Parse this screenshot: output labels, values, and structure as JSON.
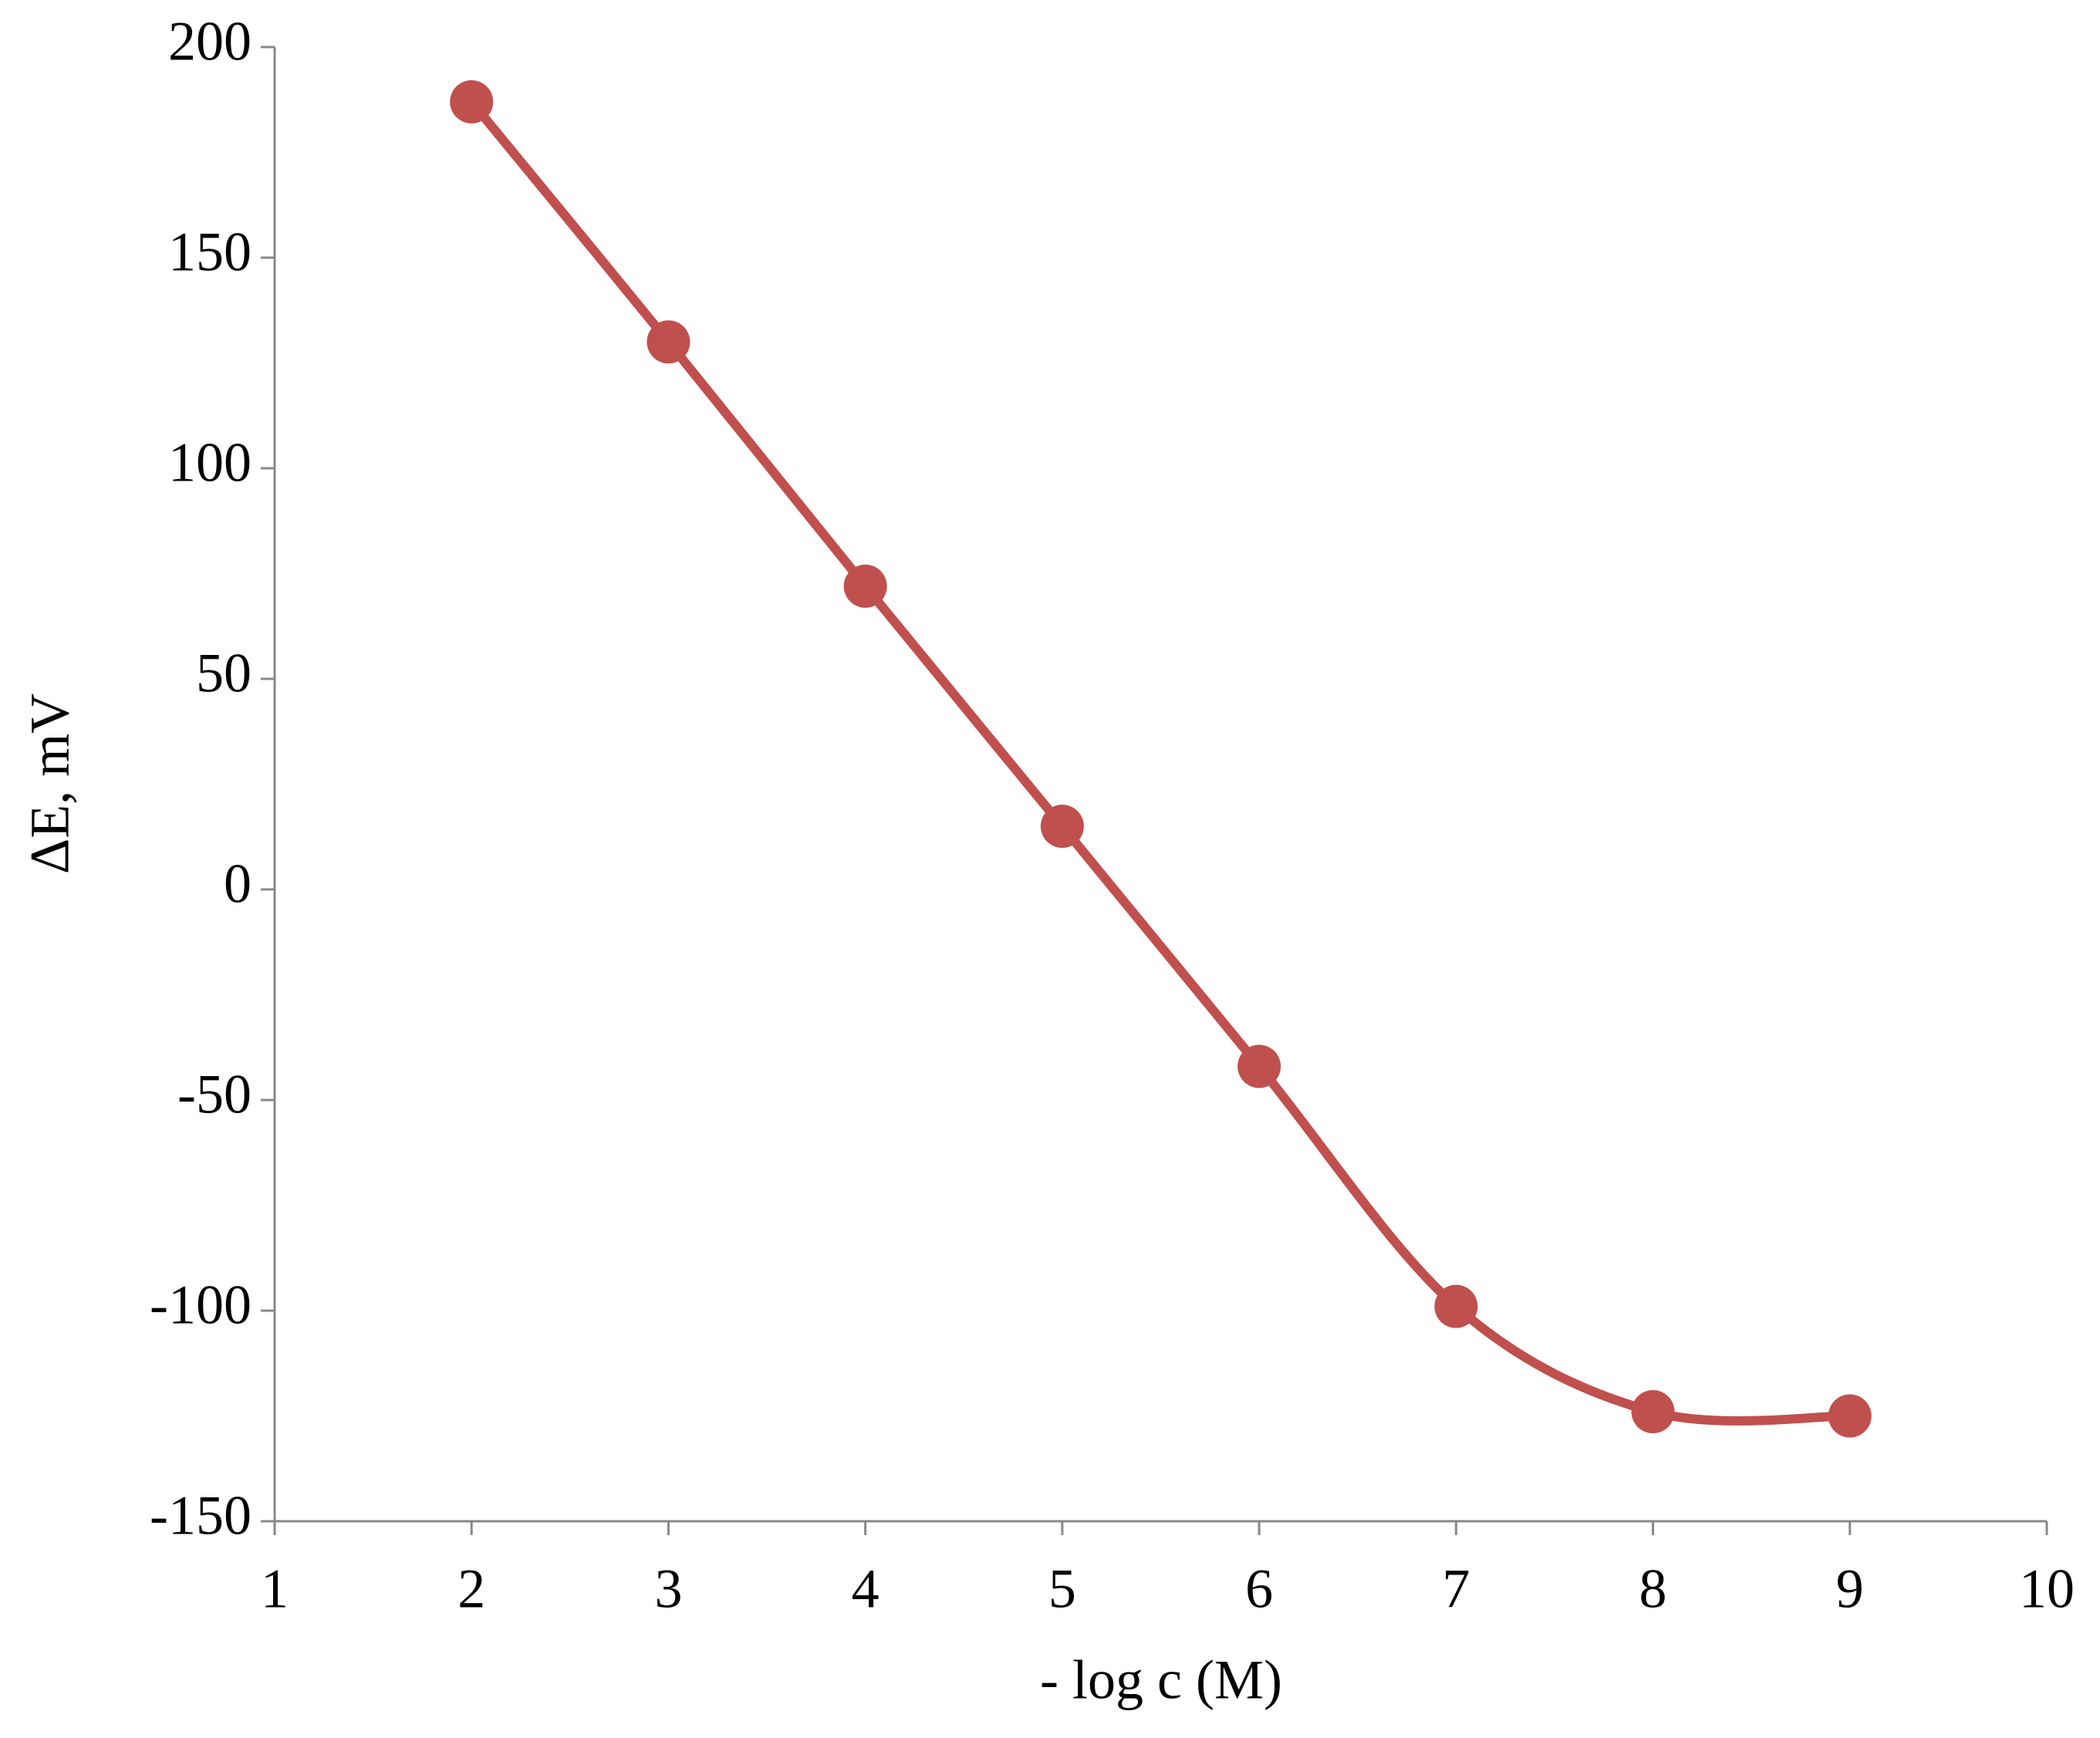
{
  "chart_data": {
    "type": "line",
    "x_label": "- log c (M)",
    "y_label": "ΔE, mV",
    "x": [
      2,
      3,
      4,
      5,
      6,
      7,
      8,
      9
    ],
    "series": [
      {
        "color": "#c0504d",
        "values": [
          187,
          130,
          72,
          15,
          -42,
          -99,
          -124,
          -125
        ]
      }
    ],
    "xlim": [
      1,
      10
    ],
    "xticks": [
      1,
      2,
      3,
      4,
      5,
      6,
      7,
      8,
      9,
      10
    ],
    "ylim": [
      -150,
      200
    ],
    "yticks": [
      -150,
      -100,
      -50,
      0,
      50,
      100,
      150,
      200
    ],
    "smooth": true,
    "markers": true,
    "grid": false
  }
}
